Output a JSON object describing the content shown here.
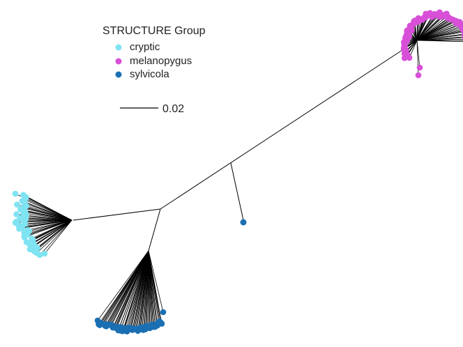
{
  "legend": {
    "title": "STRUCTURE Group",
    "items": [
      {
        "label": "cryptic",
        "color": "#7fe3f2"
      },
      {
        "label": "melanopygus",
        "color": "#d84fd8"
      },
      {
        "label": "sylvicola",
        "color": "#1b6fb3"
      }
    ]
  },
  "scale_bar": {
    "label": "0.02"
  },
  "colors": {
    "branch": "#000000",
    "background": "#ffffff"
  }
}
